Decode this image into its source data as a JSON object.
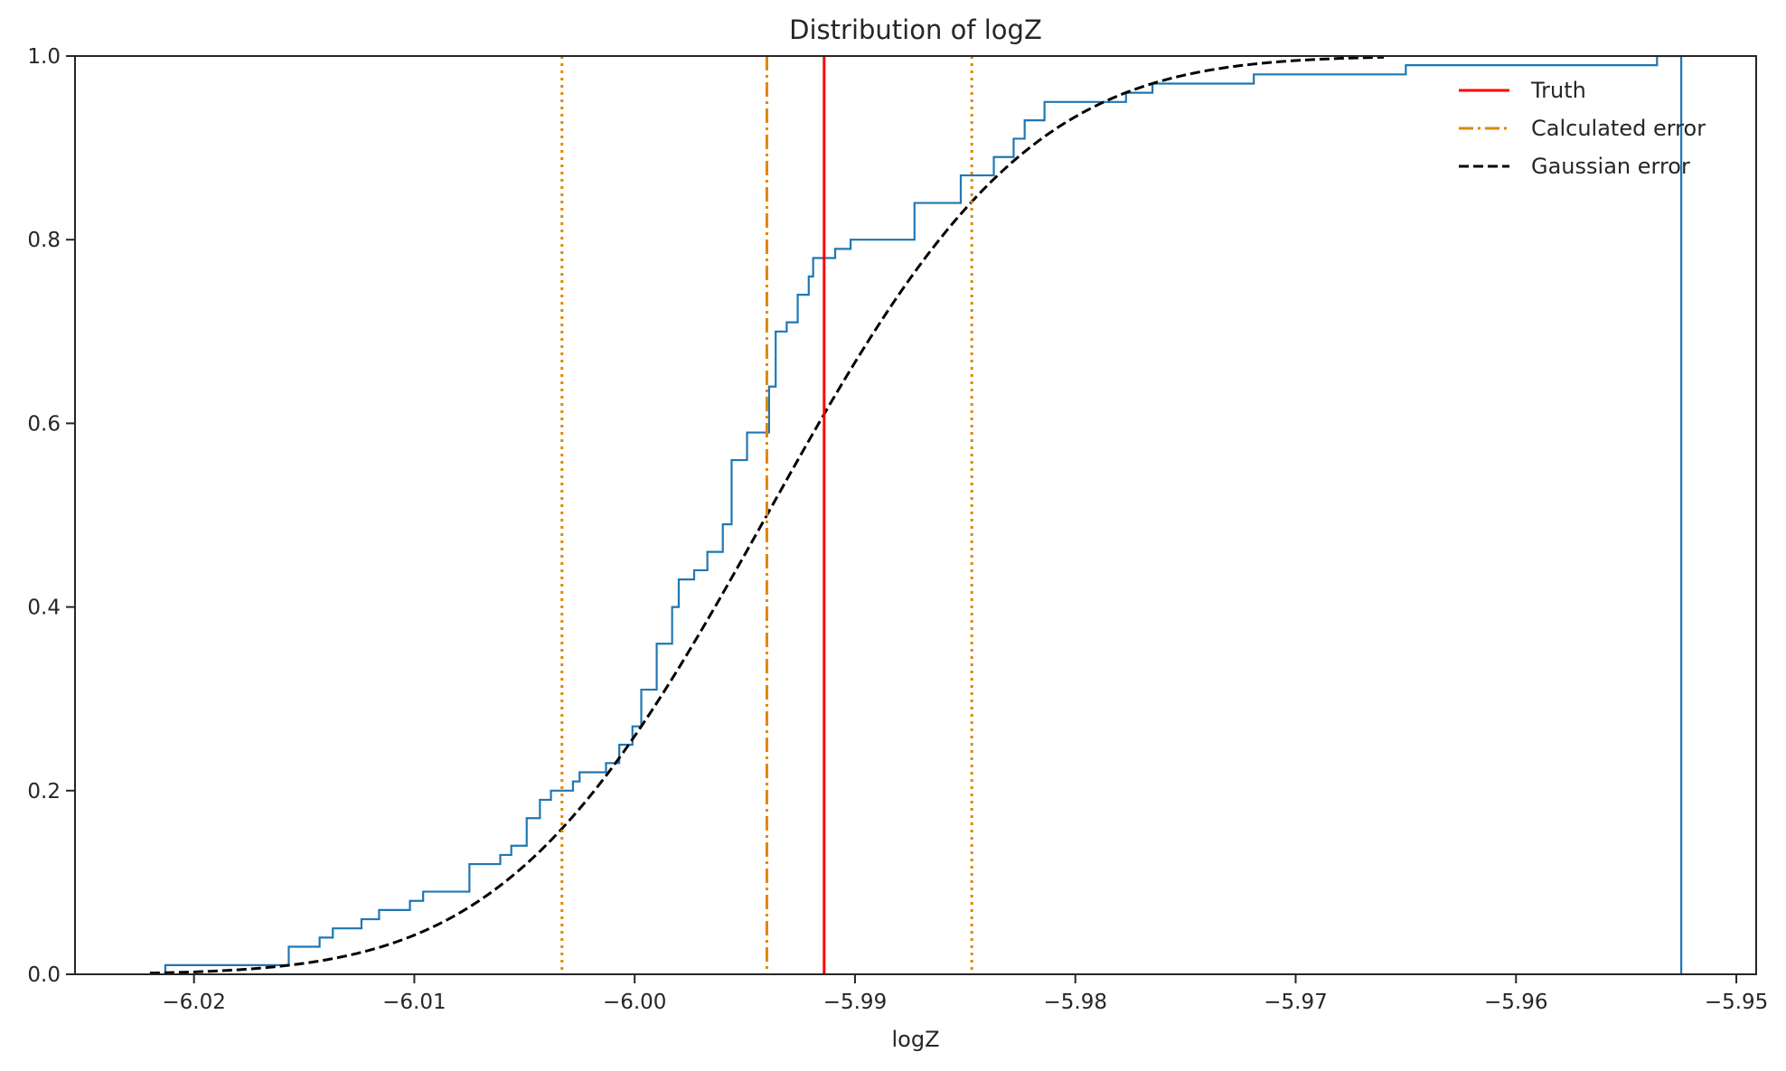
{
  "chart_data": {
    "type": "line",
    "title": "Distribution of logZ",
    "xlabel": "logZ",
    "ylabel": "",
    "xlim": [
      -6.0254,
      -5.9491
    ],
    "ylim": [
      0,
      1
    ],
    "xticks": [
      -6.02,
      -6.01,
      -6.0,
      -5.99,
      -5.98,
      -5.97,
      -5.96,
      -5.95
    ],
    "xtick_labels": [
      "−6.02",
      "−6.01",
      "−6.00",
      "−5.99",
      "−5.98",
      "−5.97",
      "−5.96",
      "−5.95"
    ],
    "yticks": [
      0.0,
      0.2,
      0.4,
      0.6,
      0.8,
      1.0
    ],
    "ytick_labels": [
      "0.0",
      "0.2",
      "0.4",
      "0.6",
      "0.8",
      "1.0"
    ],
    "grid": false,
    "legend_position": "top-right",
    "legend": [
      {
        "label": "Truth",
        "color": "#ff0000",
        "style": "solid"
      },
      {
        "label": "Calculated error",
        "color": "#e08700",
        "style": "dashdot"
      },
      {
        "label": "Gaussian error",
        "color": "#000000",
        "style": "dashed"
      }
    ],
    "truth": {
      "x": -5.9914,
      "color": "#ff0000"
    },
    "calculated_error": {
      "mean": -5.994,
      "lower": -6.0033,
      "upper": -5.9847,
      "color": "#e08700"
    },
    "gaussian_error": {
      "mean": -5.994,
      "sigma": 0.0093,
      "x_range": [
        -6.022,
        -5.966
      ],
      "color": "#000000"
    },
    "ecdf": {
      "color": "#1f77b4",
      "x": [
        -6.0213,
        -6.0157,
        -6.0143,
        -6.0137,
        -6.0124,
        -6.0116,
        -6.0102,
        -6.0096,
        -6.0075,
        -6.0061,
        -6.0056,
        -6.0049,
        -6.0043,
        -6.0038,
        -6.0028,
        -6.0025,
        -6.0021,
        -6.0013,
        -6.0007,
        -6.0001,
        -5.9997,
        -5.999,
        -5.9983,
        -5.998,
        -5.9973,
        -5.9967,
        -5.996,
        -5.9956,
        -5.9949,
        -5.9939,
        -5.9936,
        -5.9931,
        -5.9926,
        -5.9921,
        -5.9919,
        -5.9909,
        -5.9902,
        -5.9898,
        -5.9893,
        -5.989,
        -5.9884,
        -5.9873,
        -5.9852,
        -5.9837,
        -5.9828,
        -5.9823,
        -5.9814,
        -5.9806,
        -5.9777,
        -5.9765,
        -5.9719,
        -5.965,
        -5.9536,
        -5.9525
      ],
      "y": [
        0.01,
        0.03,
        0.04,
        0.05,
        0.06,
        0.07,
        0.08,
        0.09,
        0.12,
        0.13,
        0.14,
        0.17,
        0.19,
        0.2,
        0.21,
        0.22,
        0.22,
        0.23,
        0.25,
        0.27,
        0.31,
        0.36,
        0.4,
        0.43,
        0.44,
        0.46,
        0.49,
        0.56,
        0.59,
        0.64,
        0.7,
        0.71,
        0.74,
        0.76,
        0.78,
        0.79,
        0.8,
        0.8,
        0.8,
        0.8,
        0.8,
        0.84,
        0.87,
        0.89,
        0.91,
        0.93,
        0.95,
        0.95,
        0.96,
        0.97,
        0.98,
        0.99,
        1.0,
        1.0
      ]
    }
  }
}
